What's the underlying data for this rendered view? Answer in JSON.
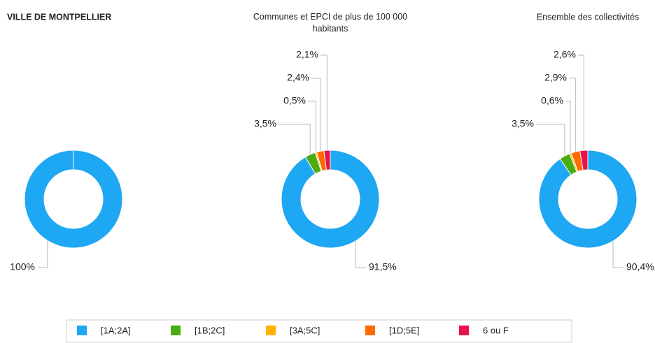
{
  "legend": {
    "items": [
      {
        "name": "[1A;2A]",
        "color": "#1ea7f2"
      },
      {
        "name": "[1B;2C]",
        "color": "#4aac12"
      },
      {
        "name": "[3A;5C]",
        "color": "#ffb400"
      },
      {
        "name": "[1D;5E]",
        "color": "#ff6a00"
      },
      {
        "name": "6 ou F",
        "color": "#e8124a"
      }
    ]
  },
  "chart_data": [
    {
      "type": "pie",
      "title": "VILLE DE MONTPELLIER",
      "values": [
        100,
        0,
        0,
        0,
        0
      ],
      "value_labels": [
        "100%",
        null,
        null,
        null,
        null
      ]
    },
    {
      "type": "pie",
      "title": "Communes et EPCI de plus de 100 000 habitants",
      "values": [
        91.5,
        3.5,
        0.5,
        2.4,
        2.1
      ],
      "value_labels": [
        "91,5%",
        "3,5%",
        "0,5%",
        "2,4%",
        "2,1%"
      ]
    },
    {
      "type": "pie",
      "title": "Ensemble des collectivités",
      "values": [
        90.4,
        3.5,
        0.6,
        2.9,
        2.6
      ],
      "value_labels": [
        "90,4%",
        "3,5%",
        "0,6%",
        "2,9%",
        "2,6%"
      ]
    }
  ]
}
